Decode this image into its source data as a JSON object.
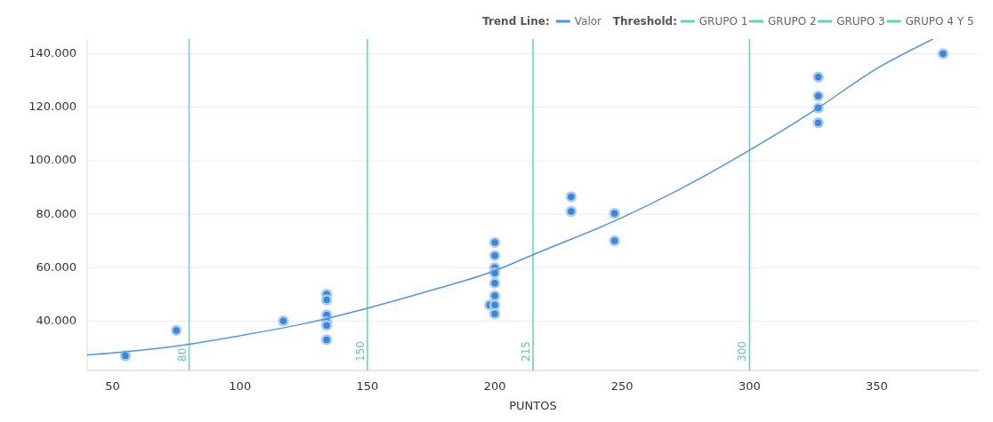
{
  "chart_data": {
    "type": "scatter",
    "xlabel": "PUNTOS",
    "legend_title": "Trend Line:",
    "legend": "top right",
    "grid": "y",
    "xlim": [
      40,
      390
    ],
    "xticks": [
      50,
      100,
      150,
      200,
      250,
      300,
      350
    ],
    "ylim": [
      21500,
      145500
    ],
    "yticks": [
      {
        "value": 40000,
        "label": "40.000"
      },
      {
        "value": 60000,
        "label": "60.000"
      },
      {
        "value": 80000,
        "label": "80.000"
      },
      {
        "value": 100000,
        "label": "100.000"
      },
      {
        "value": 120000,
        "label": "120.000"
      },
      {
        "value": 140000,
        "label": "140.000"
      }
    ],
    "series": [
      {
        "color": "#3a86d9",
        "x": [
          55,
          75,
          117,
          134,
          134,
          134,
          134,
          134,
          134,
          198,
          200,
          200,
          200,
          200,
          200,
          200,
          200,
          200,
          230,
          230,
          247,
          247,
          327,
          327,
          327,
          327,
          376
        ],
        "values": [
          27000,
          36500,
          40000,
          50000,
          47900,
          42300,
          39700,
          38400,
          33000,
          46000,
          69400,
          64500,
          60000,
          58000,
          54200,
          49400,
          46000,
          42700,
          86500,
          81000,
          80300,
          70000,
          131300,
          124200,
          119700,
          114200,
          140000
        ]
      },
      {
        "type": "line",
        "name": "Valor",
        "color": "#4a97e6",
        "x": [
          40,
          60,
          80,
          100,
          125,
          150,
          175,
          200,
          215,
          250,
          275,
          300,
          325,
          350,
          372
        ],
        "values": [
          27300,
          29000,
          31300,
          34500,
          39000,
          44800,
          51500,
          58800,
          64800,
          78700,
          90500,
          103900,
          118500,
          134500,
          145500
        ]
      }
    ],
    "ref_lines": [
      {
        "axis": "x",
        "value": 80,
        "label": "GRUPO 1",
        "color": "#5fd3bb"
      },
      {
        "axis": "x",
        "value": 150,
        "label": "GRUPO 2",
        "color": "#5fd3bb"
      },
      {
        "axis": "x",
        "value": 215,
        "label": "GRUPO 3",
        "color": "#5fd3bb"
      },
      {
        "axis": "x",
        "value": 300,
        "label": "GRUPO 4 Y 5",
        "color": "#5fd3bb"
      }
    ],
    "annotations": [
      "Threshold:",
      "80",
      "150",
      "215",
      "300"
    ]
  }
}
